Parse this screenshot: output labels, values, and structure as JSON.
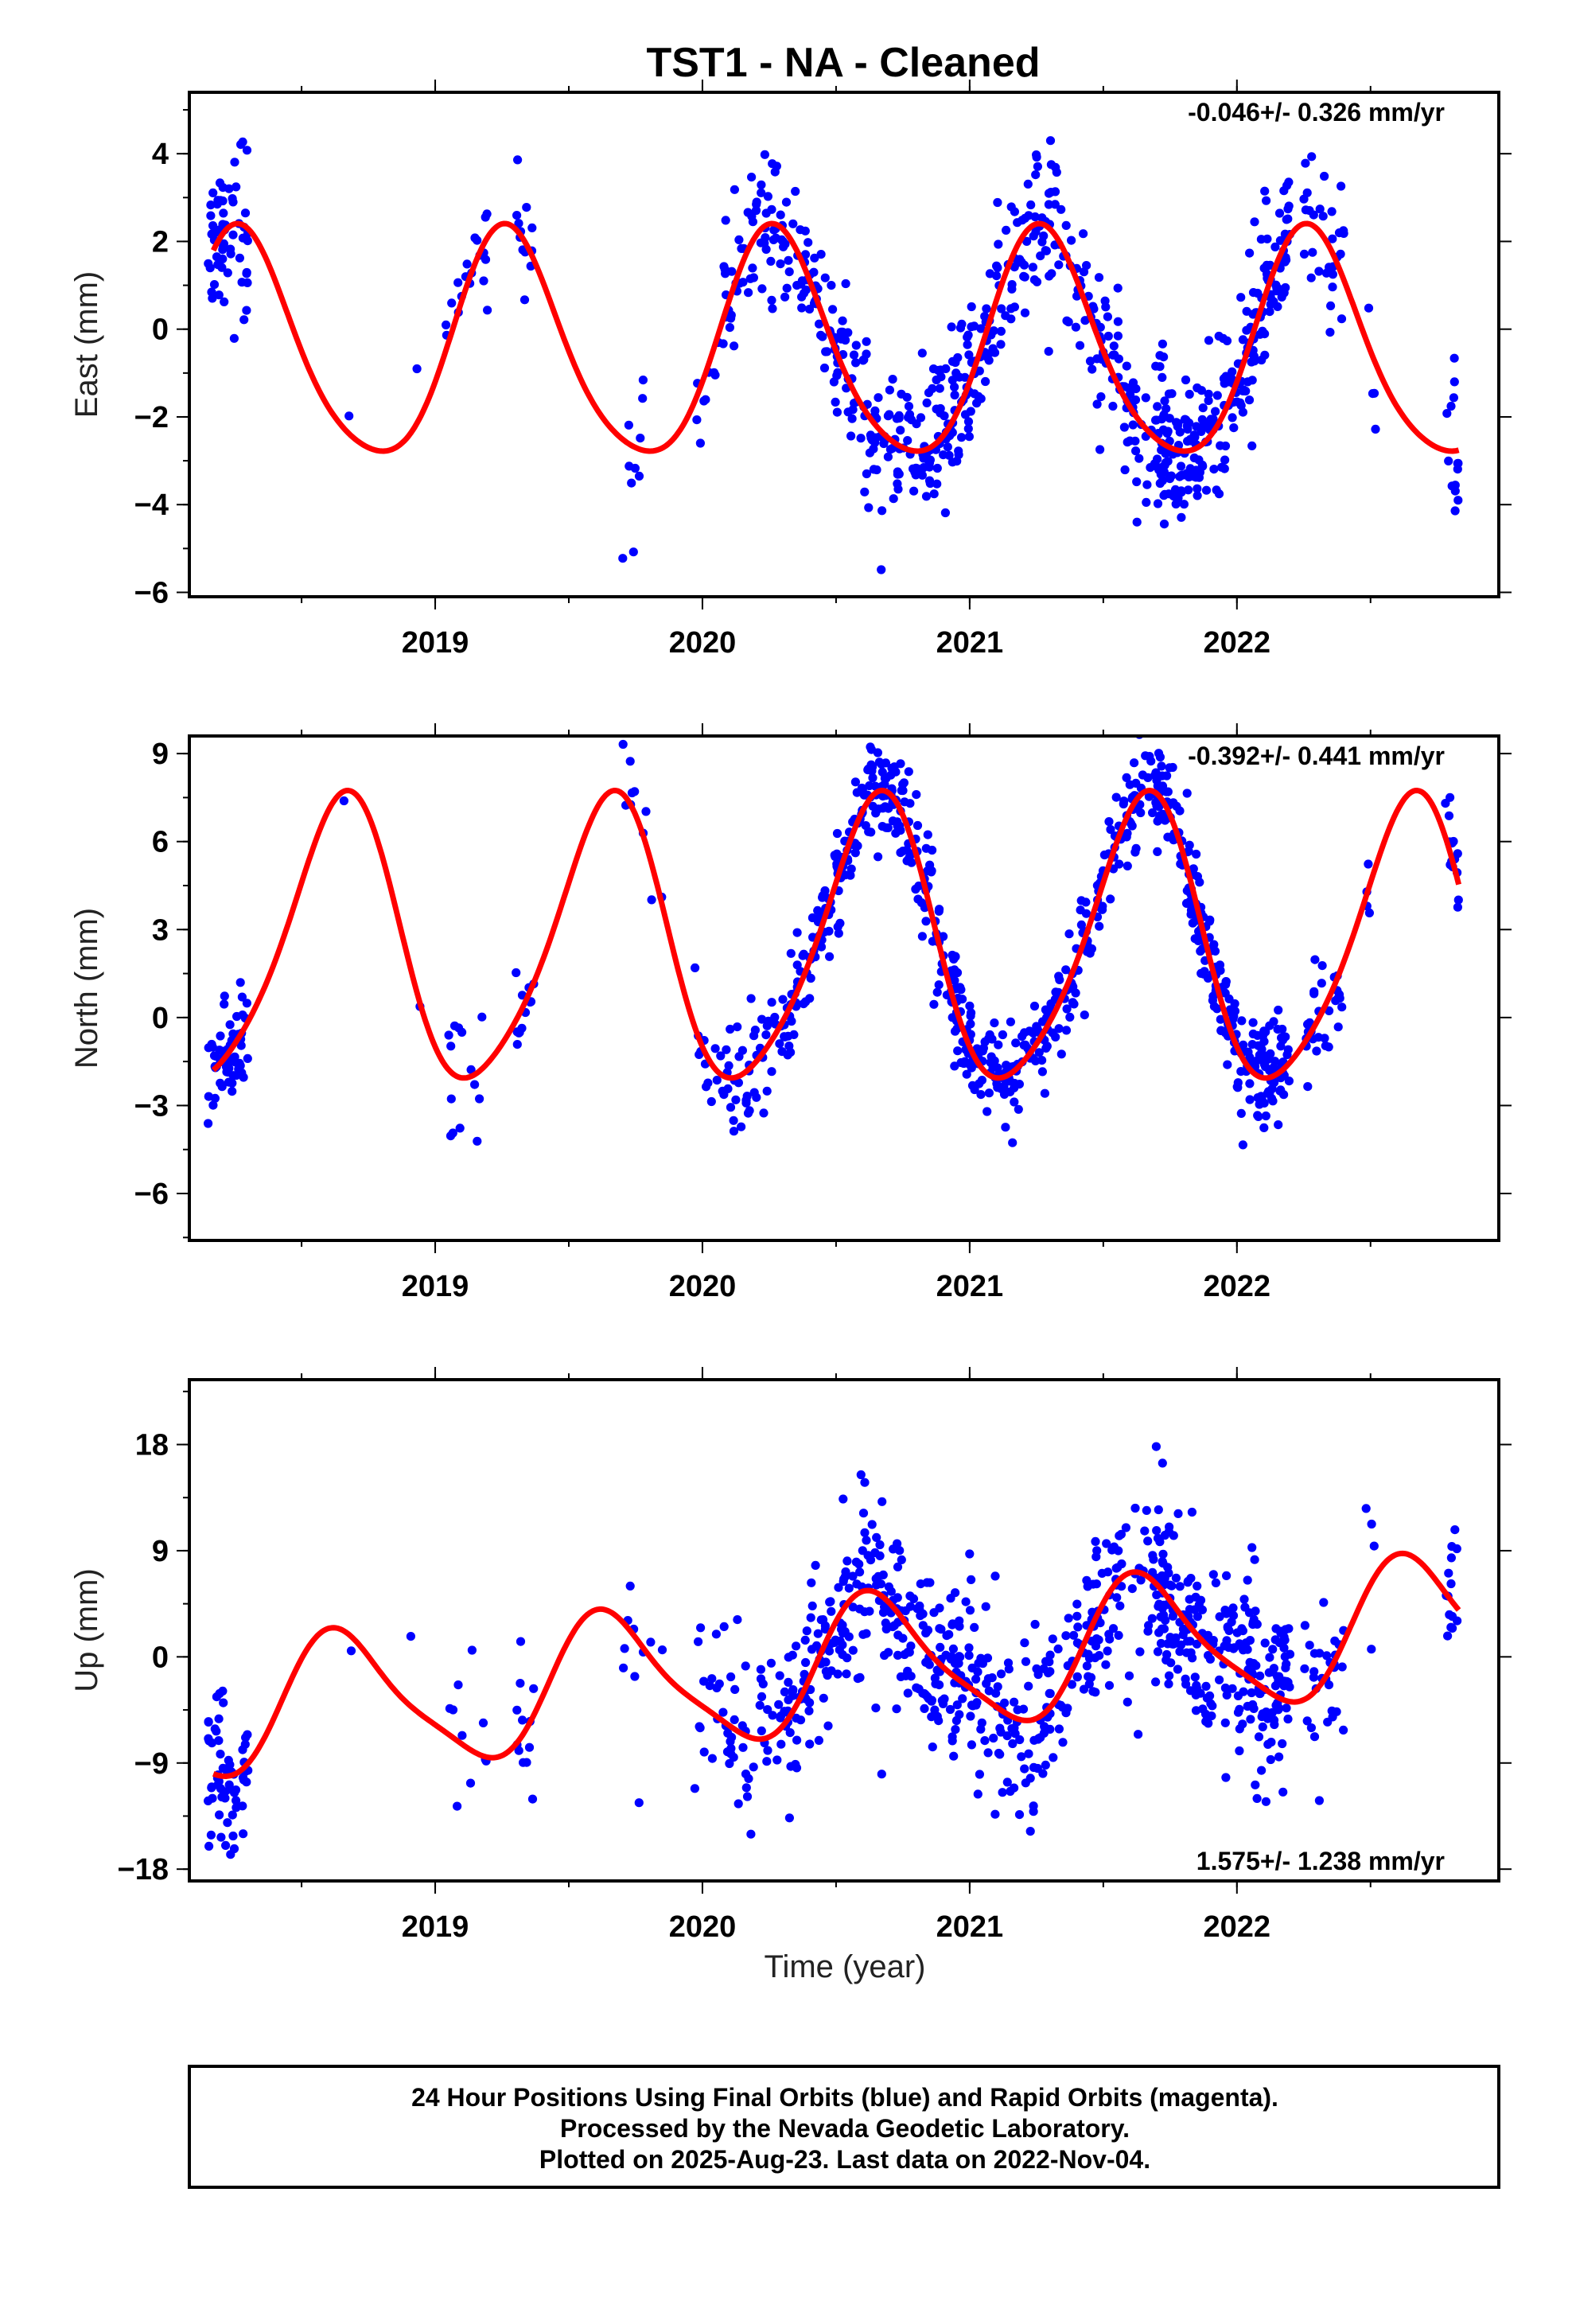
{
  "chart_title": "TST1  - NA - Cleaned",
  "colors": {
    "points": "#0000ff",
    "fit": "#ff0000",
    "frame": "#000000"
  },
  "time_axis_label": "Time (year)",
  "footer": {
    "line1": "24 Hour Positions Using Final Orbits (blue) and Rapid Orbits (magenta).",
    "line2": "Processed by the Nevada Geodetic Laboratory.",
    "line3": "Plotted on 2025-Aug-23. Last data on 2022-Nov-04."
  },
  "chart_data": [
    {
      "type": "scatter",
      "ylabel": "East (mm)",
      "rate_text": "-0.046+/- 0.326 mm/yr",
      "rate_position": "top-right",
      "xlim": [
        2018.08,
        2022.98
      ],
      "ylim": [
        -6.1,
        5.4
      ],
      "yticks": [
        4,
        2,
        0,
        -2,
        -4,
        -6
      ],
      "yticklabels": [
        "4",
        "2",
        "0",
        "−2",
        "−4",
        "−6"
      ],
      "xticks": [
        2019,
        2020,
        2021,
        2022
      ],
      "fit": {
        "offset": -0.5,
        "annual_cos": -0.35,
        "annual_sin": 2.55,
        "semiannual_cos": -0.35,
        "semiannual_sin": 0.05
      },
      "observations": {
        "amplitude_scale": 1.0,
        "noise_sd": 0.85,
        "segments": [
          [
            2018.15,
            2018.3,
            60
          ],
          [
            2018.9,
            2018.95,
            1
          ],
          [
            2018.65,
            2018.7,
            1
          ],
          [
            2019.02,
            2019.06,
            2
          ],
          [
            2019.05,
            2019.2,
            18
          ],
          [
            2019.3,
            2019.37,
            12
          ],
          [
            2019.7,
            2019.75,
            6
          ],
          [
            2019.75,
            2019.85,
            4
          ],
          [
            2019.97,
            2020.05,
            8
          ],
          [
            2020.05,
            2020.2,
            30
          ],
          [
            2020.2,
            2020.6,
            110
          ],
          [
            2020.6,
            2021.05,
            160
          ],
          [
            2021.05,
            2021.6,
            150
          ],
          [
            2021.6,
            2021.75,
            35
          ],
          [
            2021.7,
            2022.2,
            230
          ],
          [
            2022.25,
            2022.4,
            30
          ],
          [
            2022.48,
            2022.53,
            4
          ],
          [
            2022.78,
            2022.83,
            14
          ]
        ]
      }
    },
    {
      "type": "scatter",
      "ylabel": "North (mm)",
      "rate_text": "-0.392+/- 0.441 mm/yr",
      "rate_position": "top-right",
      "xlim": [
        2018.08,
        2022.98
      ],
      "ylim": [
        -7.6,
        9.6
      ],
      "yticks": [
        9,
        6,
        3,
        0,
        -3,
        -6
      ],
      "yticklabels": [
        "9",
        "6",
        "3",
        "0",
        "−3",
        "−6"
      ],
      "xticks": [
        2019,
        2020,
        2021,
        2022
      ],
      "fit": {
        "offset": 2.4,
        "annual_cos": -2.8,
        "annual_sin": -3.9,
        "semiannual_cos": -0.6,
        "semiannual_sin": 0.3
      },
      "observations": {
        "amplitude_scale": 1.0,
        "noise_sd": 0.9,
        "segments": [
          [
            2018.15,
            2018.3,
            60
          ],
          [
            2018.65,
            2018.7,
            1
          ],
          [
            2018.9,
            2018.95,
            1
          ],
          [
            2019.05,
            2019.2,
            14
          ],
          [
            2019.3,
            2019.37,
            12
          ],
          [
            2019.7,
            2019.75,
            6
          ],
          [
            2019.75,
            2019.85,
            4
          ],
          [
            2019.97,
            2020.05,
            10
          ],
          [
            2020.05,
            2020.2,
            30
          ],
          [
            2020.2,
            2020.6,
            120
          ],
          [
            2020.6,
            2021.05,
            180
          ],
          [
            2021.05,
            2021.6,
            160
          ],
          [
            2021.6,
            2021.75,
            35
          ],
          [
            2021.7,
            2022.2,
            230
          ],
          [
            2022.25,
            2022.4,
            30
          ],
          [
            2022.48,
            2022.53,
            4
          ],
          [
            2022.78,
            2022.83,
            14
          ]
        ]
      }
    },
    {
      "type": "scatter",
      "ylabel": "Up (mm)",
      "rate_text": "1.575+/- 1.238 mm/yr",
      "rate_position": "bottom-right",
      "xlim": [
        2018.08,
        2022.98
      ],
      "ylim": [
        -19,
        23.5
      ],
      "yticks": [
        18,
        9,
        0,
        -9,
        -18
      ],
      "yticklabels": [
        "18",
        "9",
        "0",
        "−9",
        "−18"
      ],
      "xticks": [
        2019,
        2020,
        2021,
        2022
      ],
      "fit": {
        "offset": -1.0,
        "annual_cos": -3.2,
        "annual_sin": -4.6,
        "semiannual_cos": 0.8,
        "semiannual_sin": 0.9,
        "trend": 1.575,
        "trend_ref": 2020.5
      },
      "observations": {
        "amplitude_scale": 1.0,
        "noise_sd": 3.8,
        "segments": [
          [
            2018.15,
            2018.3,
            60
          ],
          [
            2018.65,
            2018.7,
            1
          ],
          [
            2018.9,
            2018.95,
            1
          ],
          [
            2019.05,
            2019.2,
            10
          ],
          [
            2019.3,
            2019.37,
            12
          ],
          [
            2019.7,
            2019.75,
            6
          ],
          [
            2019.75,
            2019.85,
            4
          ],
          [
            2019.97,
            2020.05,
            10
          ],
          [
            2020.05,
            2020.2,
            30
          ],
          [
            2020.2,
            2020.6,
            120
          ],
          [
            2020.6,
            2021.05,
            180
          ],
          [
            2021.05,
            2021.6,
            160
          ],
          [
            2021.6,
            2021.75,
            35
          ],
          [
            2021.7,
            2022.2,
            230
          ],
          [
            2022.25,
            2022.4,
            30
          ],
          [
            2022.48,
            2022.53,
            4
          ],
          [
            2022.78,
            2022.83,
            14
          ]
        ]
      }
    }
  ]
}
